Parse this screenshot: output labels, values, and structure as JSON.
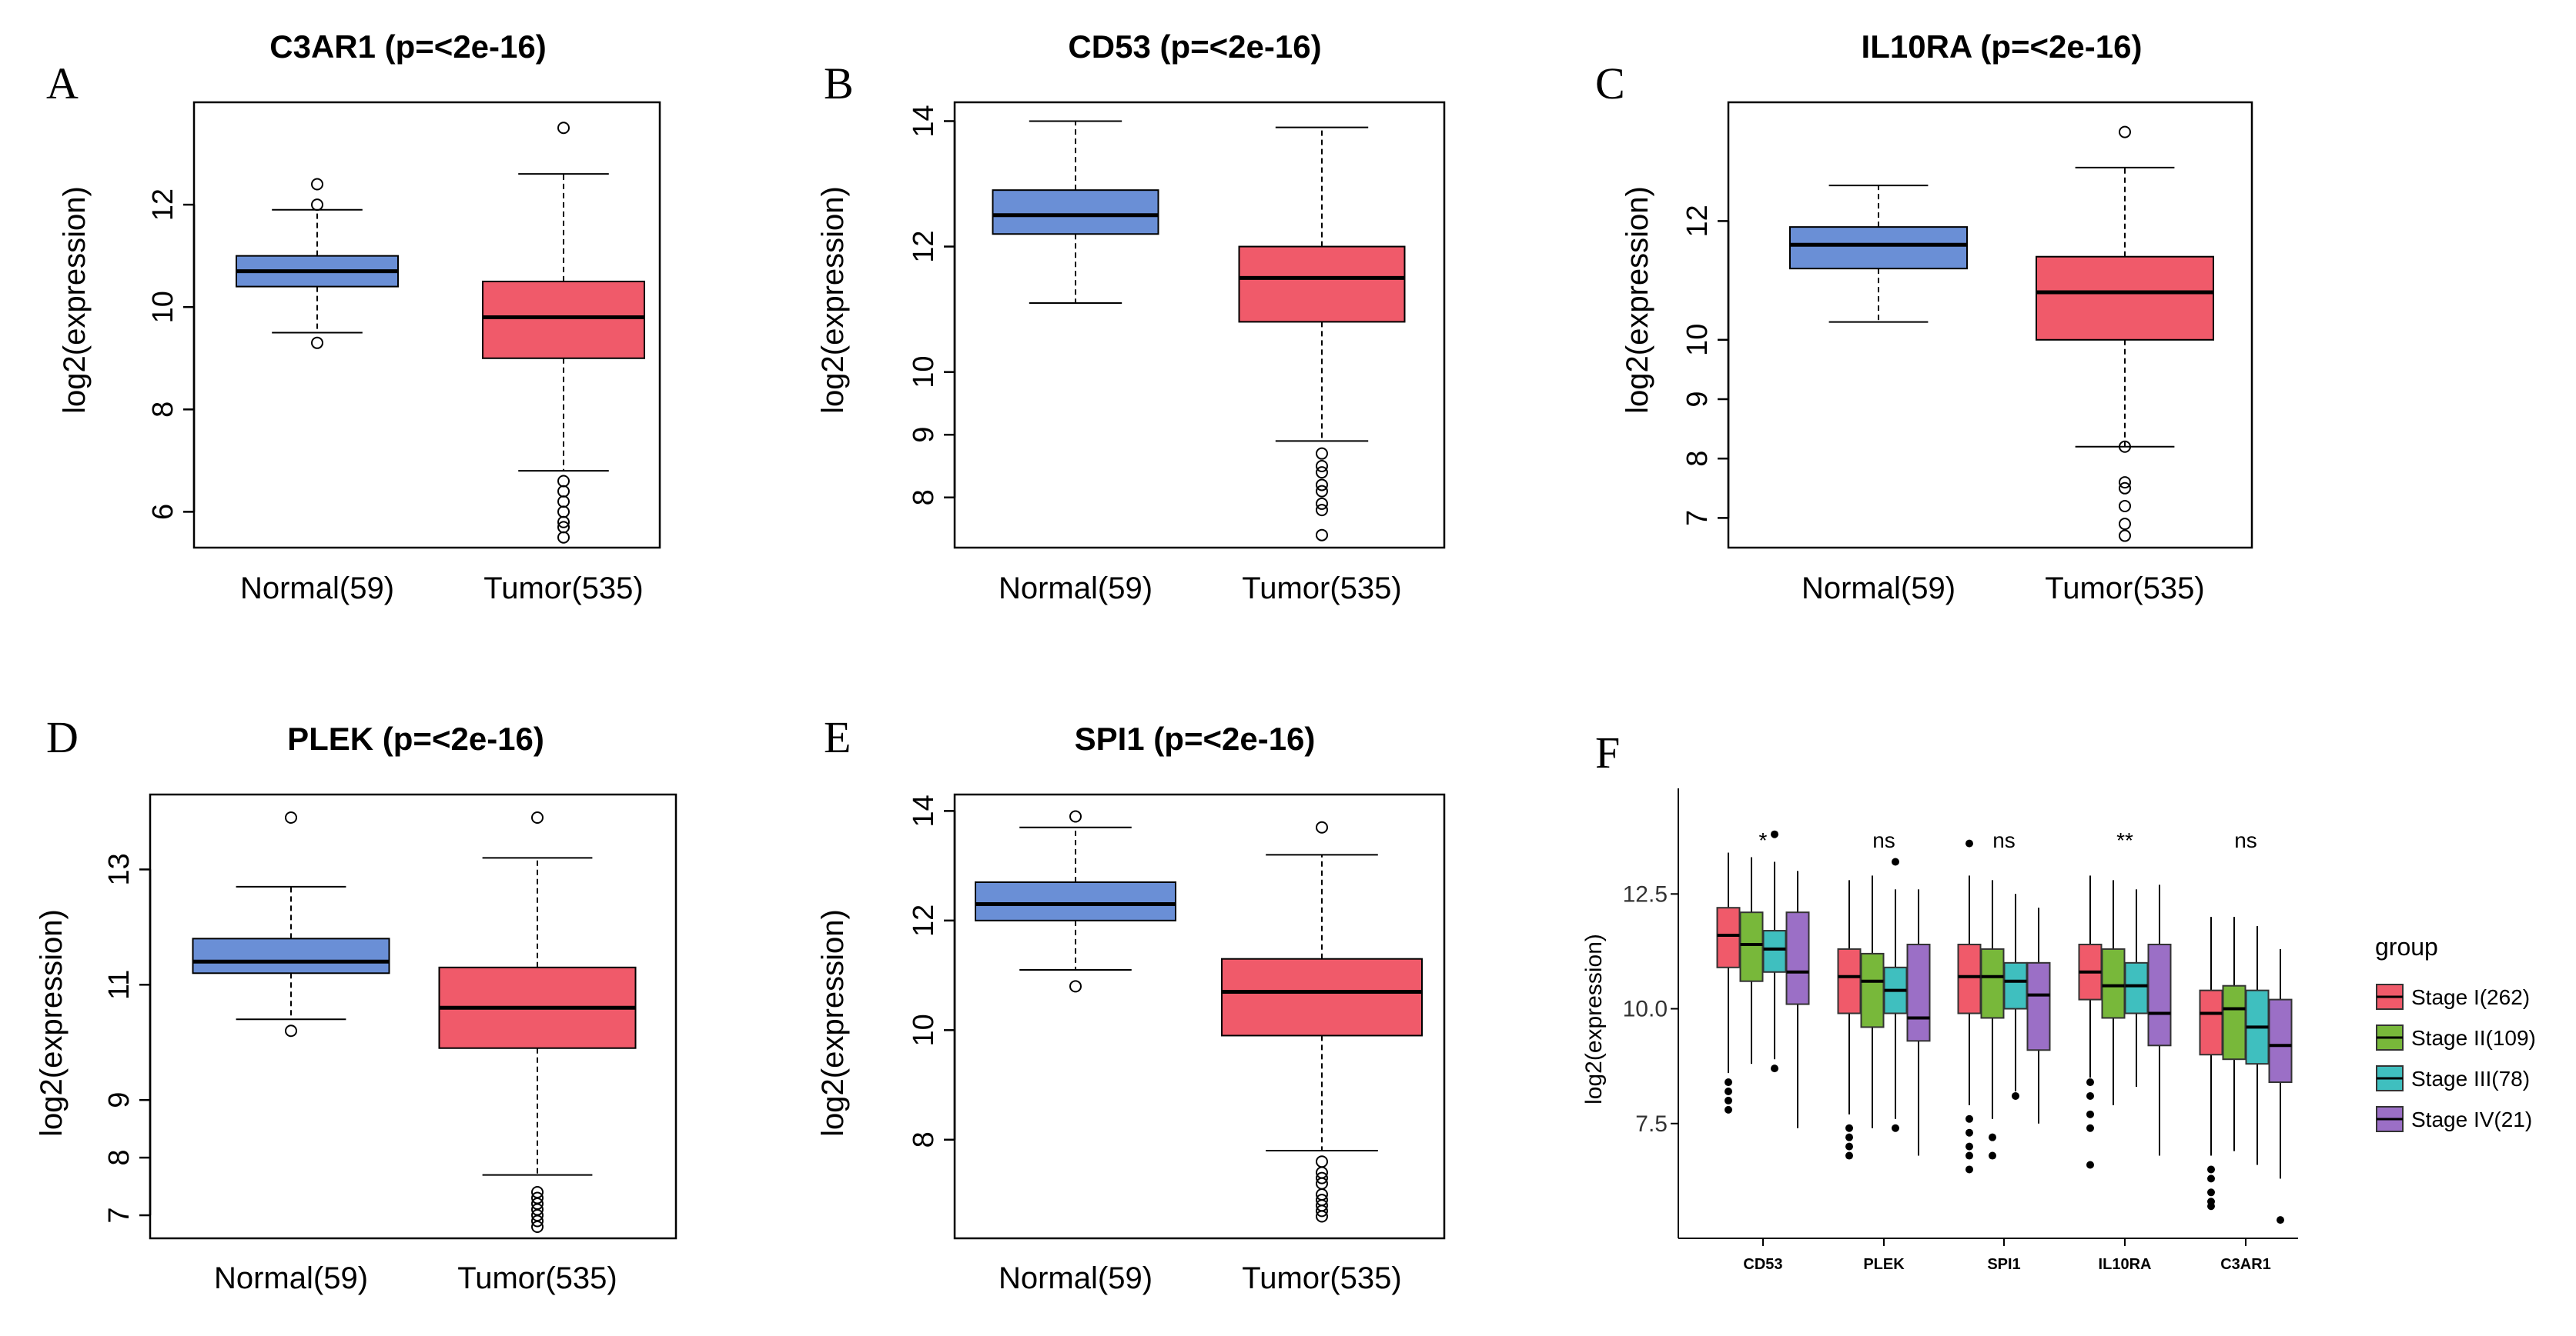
{
  "chart_data": [
    {
      "panel": "A",
      "type": "boxplot",
      "title": "C3AR1 (p=<2e-16)",
      "ylabel": "log2(expression)",
      "ylim": [
        5.3,
        14.0
      ],
      "yticks": [
        6,
        8,
        10,
        12
      ],
      "categories": [
        "Normal(59)",
        "Tumor(535)"
      ],
      "colors": [
        "#6a8fd6",
        "#f05a6a"
      ],
      "boxes": [
        {
          "q1": 10.4,
          "median": 10.7,
          "q3": 11.0,
          "wlow": 9.5,
          "whigh": 11.9,
          "outliers": [
            9.3,
            12.0,
            12.4
          ]
        },
        {
          "q1": 9.0,
          "median": 9.8,
          "q3": 10.5,
          "wlow": 6.8,
          "whigh": 12.6,
          "outliers": [
            13.5,
            6.6,
            6.4,
            6.2,
            6.0,
            5.8,
            5.7,
            5.5
          ]
        }
      ]
    },
    {
      "panel": "B",
      "type": "boxplot",
      "title": "CD53 (p=<2e-16)",
      "ylabel": "log2(expression)",
      "ylim": [
        7.2,
        14.3
      ],
      "yticks": [
        8,
        9,
        10,
        12,
        14
      ],
      "categories": [
        "Normal(59)",
        "Tumor(535)"
      ],
      "colors": [
        "#6a8fd6",
        "#f05a6a"
      ],
      "boxes": [
        {
          "q1": 12.2,
          "median": 12.5,
          "q3": 12.9,
          "wlow": 11.1,
          "whigh": 14.0,
          "outliers": []
        },
        {
          "q1": 10.8,
          "median": 11.5,
          "q3": 12.0,
          "wlow": 8.9,
          "whigh": 13.9,
          "outliers": [
            8.7,
            8.5,
            8.4,
            8.2,
            8.1,
            7.9,
            7.8,
            7.4
          ]
        }
      ]
    },
    {
      "panel": "C",
      "type": "boxplot",
      "title": "IL10RA (p=<2e-16)",
      "ylabel": "log2(expression)",
      "ylim": [
        6.5,
        14.0
      ],
      "yticks": [
        7,
        8,
        9,
        10,
        12
      ],
      "categories": [
        "Normal(59)",
        "Tumor(535)"
      ],
      "colors": [
        "#6a8fd6",
        "#f05a6a"
      ],
      "boxes": [
        {
          "q1": 11.2,
          "median": 11.6,
          "q3": 11.9,
          "wlow": 10.3,
          "whigh": 12.6,
          "outliers": []
        },
        {
          "q1": 10.0,
          "median": 10.8,
          "q3": 11.4,
          "wlow": 8.2,
          "whigh": 12.9,
          "outliers": [
            13.5,
            8.2,
            7.6,
            7.5,
            7.2,
            6.9,
            6.7
          ]
        }
      ]
    },
    {
      "panel": "D",
      "type": "boxplot",
      "title": "PLEK (p=<2e-16)",
      "ylabel": "log2(expression)",
      "ylim": [
        6.6,
        14.3
      ],
      "yticks": [
        7,
        8,
        9,
        11,
        13
      ],
      "categories": [
        "Normal(59)",
        "Tumor(535)"
      ],
      "colors": [
        "#6a8fd6",
        "#f05a6a"
      ],
      "boxes": [
        {
          "q1": 11.2,
          "median": 11.4,
          "q3": 11.8,
          "wlow": 10.4,
          "whigh": 12.7,
          "outliers": [
            10.2,
            13.9
          ]
        },
        {
          "q1": 9.9,
          "median": 10.6,
          "q3": 11.3,
          "wlow": 7.7,
          "whigh": 13.2,
          "outliers": [
            13.9,
            7.4,
            7.3,
            7.2,
            7.1,
            7.0,
            6.9,
            6.8
          ]
        }
      ]
    },
    {
      "panel": "E",
      "type": "boxplot",
      "title": "SPI1 (p=<2e-16)",
      "ylabel": "log2(expression)",
      "ylim": [
        6.2,
        14.3
      ],
      "yticks": [
        8,
        10,
        12,
        14
      ],
      "categories": [
        "Normal(59)",
        "Tumor(535)"
      ],
      "colors": [
        "#6a8fd6",
        "#f05a6a"
      ],
      "boxes": [
        {
          "q1": 12.0,
          "median": 12.3,
          "q3": 12.7,
          "wlow": 11.1,
          "whigh": 13.7,
          "outliers": [
            10.8,
            13.9
          ]
        },
        {
          "q1": 9.9,
          "median": 10.7,
          "q3": 11.3,
          "wlow": 7.8,
          "whigh": 13.2,
          "outliers": [
            13.7,
            7.6,
            7.4,
            7.3,
            7.2,
            7.0,
            6.9,
            6.8,
            6.7,
            6.6
          ]
        }
      ]
    },
    {
      "panel": "F",
      "type": "grouped_boxplot",
      "ylabel": "log2(expression)",
      "ylim": [
        5.0,
        14.8
      ],
      "yticks": [
        7.5,
        10.0,
        12.5
      ],
      "categories": [
        "CD53",
        "PLEK",
        "SPI1",
        "IL10RA",
        "C3AR1"
      ],
      "significance": [
        "*",
        "ns",
        "ns",
        "**",
        "ns"
      ],
      "legend_title": "group",
      "series": [
        {
          "name": "Stage I(262)",
          "color": "#f05a6a"
        },
        {
          "name": "Stage II(109)",
          "color": "#78b83a"
        },
        {
          "name": "Stage III(78)",
          "color": "#3fbfbf"
        },
        {
          "name": "Stage IV(21)",
          "color": "#9b6fc6"
        }
      ],
      "boxes": [
        [
          {
            "q1": 10.9,
            "median": 11.6,
            "q3": 12.2,
            "wlow": 8.6,
            "whigh": 13.4,
            "outliers": [
              8.4,
              8.2,
              8.0,
              7.8
            ]
          },
          {
            "q1": 10.6,
            "median": 11.4,
            "q3": 12.1,
            "wlow": 8.8,
            "whigh": 13.3,
            "outliers": []
          },
          {
            "q1": 10.8,
            "median": 11.3,
            "q3": 11.7,
            "wlow": 8.9,
            "whigh": 13.2,
            "outliers": [
              8.7,
              13.8
            ]
          },
          {
            "q1": 10.1,
            "median": 10.8,
            "q3": 12.1,
            "wlow": 7.4,
            "whigh": 13.0,
            "outliers": []
          }
        ],
        [
          {
            "q1": 9.9,
            "median": 10.7,
            "q3": 11.3,
            "wlow": 7.7,
            "whigh": 12.8,
            "outliers": [
              7.4,
              7.2,
              7.0,
              6.8
            ]
          },
          {
            "q1": 9.6,
            "median": 10.6,
            "q3": 11.2,
            "wlow": 7.4,
            "whigh": 12.9,
            "outliers": []
          },
          {
            "q1": 9.9,
            "median": 10.4,
            "q3": 10.9,
            "wlow": 7.6,
            "whigh": 12.6,
            "outliers": [
              7.4,
              13.2
            ]
          },
          {
            "q1": 9.3,
            "median": 9.8,
            "q3": 11.4,
            "wlow": 6.8,
            "whigh": 12.6,
            "outliers": []
          }
        ],
        [
          {
            "q1": 9.9,
            "median": 10.7,
            "q3": 11.4,
            "wlow": 7.9,
            "whigh": 12.9,
            "outliers": [
              13.6,
              7.6,
              7.3,
              7.0,
              6.8,
              6.5
            ]
          },
          {
            "q1": 9.8,
            "median": 10.7,
            "q3": 11.3,
            "wlow": 7.6,
            "whigh": 12.8,
            "outliers": [
              7.2,
              6.8
            ]
          },
          {
            "q1": 10.0,
            "median": 10.6,
            "q3": 11.0,
            "wlow": 8.2,
            "whigh": 12.5,
            "outliers": [
              8.1
            ]
          },
          {
            "q1": 9.1,
            "median": 10.3,
            "q3": 11.0,
            "wlow": 7.5,
            "whigh": 12.2,
            "outliers": []
          }
        ],
        [
          {
            "q1": 10.2,
            "median": 10.8,
            "q3": 11.4,
            "wlow": 8.5,
            "whigh": 12.9,
            "outliers": [
              8.4,
              8.1,
              7.7,
              7.4,
              6.6
            ]
          },
          {
            "q1": 9.8,
            "median": 10.5,
            "q3": 11.3,
            "wlow": 7.9,
            "whigh": 12.8,
            "outliers": []
          },
          {
            "q1": 9.9,
            "median": 10.5,
            "q3": 11.0,
            "wlow": 8.3,
            "whigh": 12.6,
            "outliers": []
          },
          {
            "q1": 9.2,
            "median": 9.9,
            "q3": 11.4,
            "wlow": 6.8,
            "whigh": 12.7,
            "outliers": []
          }
        ],
        [
          {
            "q1": 9.0,
            "median": 9.9,
            "q3": 10.4,
            "wlow": 6.8,
            "whigh": 12.0,
            "outliers": [
              6.5,
              6.3,
              6.0,
              5.8,
              5.7
            ]
          },
          {
            "q1": 8.9,
            "median": 10.0,
            "q3": 10.5,
            "wlow": 6.9,
            "whigh": 12.0,
            "outliers": []
          },
          {
            "q1": 8.8,
            "median": 9.6,
            "q3": 10.4,
            "wlow": 6.6,
            "whigh": 11.8,
            "outliers": []
          },
          {
            "q1": 8.4,
            "median": 9.2,
            "q3": 10.2,
            "wlow": 6.3,
            "whigh": 11.3,
            "outliers": [
              5.4
            ]
          }
        ]
      ]
    }
  ]
}
